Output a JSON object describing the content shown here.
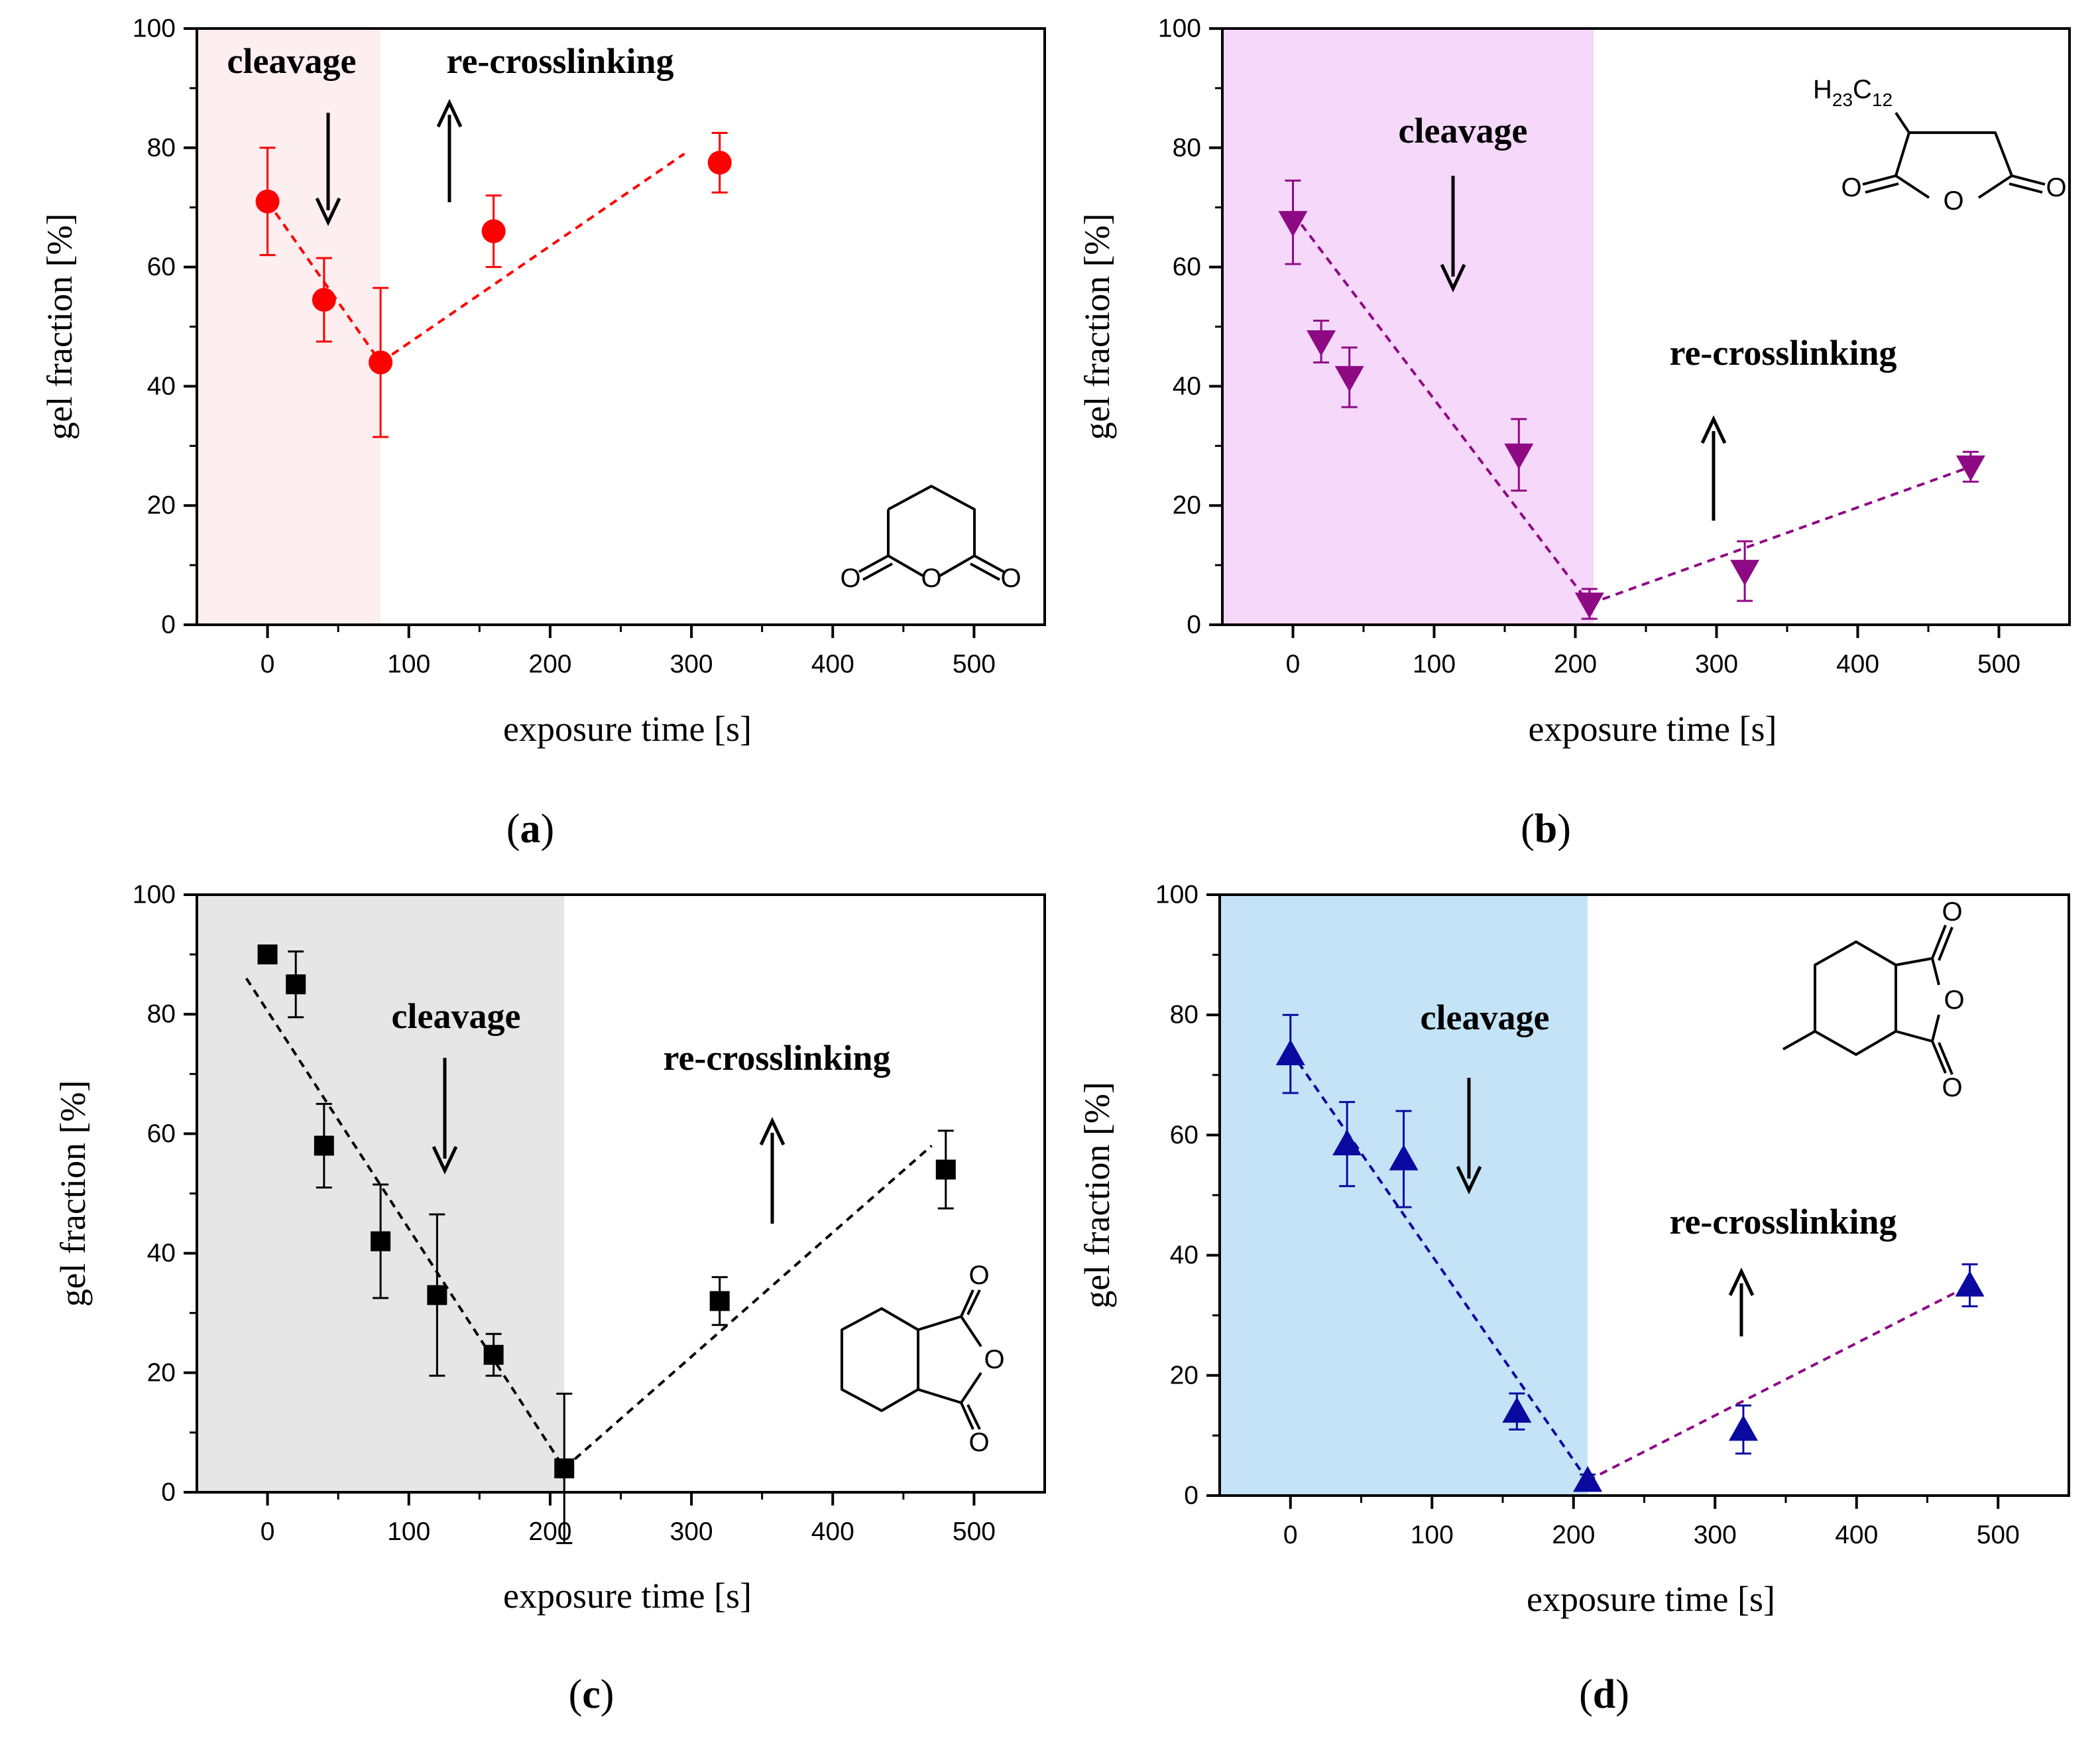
{
  "colors": {
    "a_marker": "#ff0000",
    "a_shade": "#fdeef0",
    "b_marker": "#8e0a85",
    "b_shade": "#f5d8fa",
    "c_marker": "#000000",
    "c_shade": "#e6e6e6",
    "d_marker": "#0a0aa0",
    "d_shade": "#c4e3f7",
    "d_recross_line": "#8e0a85"
  },
  "chart_data": [
    {
      "panel": "a",
      "type": "scatter",
      "marker": "circle",
      "xlabel": "exposure time [s]",
      "ylabel": "gel fraction [%]",
      "xlim": [
        -50,
        550
      ],
      "ylim": [
        0,
        100
      ],
      "xticks": [
        0,
        100,
        200,
        300,
        400,
        500
      ],
      "yticks": [
        0,
        20,
        40,
        60,
        80,
        100
      ],
      "shaded_region_x": [
        -50,
        80
      ],
      "points": [
        {
          "x": 0,
          "y": 71,
          "err": 9
        },
        {
          "x": 40,
          "y": 54.5,
          "err": 7
        },
        {
          "x": 80,
          "y": 44,
          "err": 12.5
        },
        {
          "x": 160,
          "y": 66,
          "err": 6
        },
        {
          "x": 320,
          "y": 77.5,
          "err": 5
        }
      ],
      "trend_lines": [
        {
          "x": [
            0,
            80
          ],
          "y": [
            71,
            44
          ]
        },
        {
          "x": [
            80,
            295
          ],
          "y": [
            44,
            79
          ]
        }
      ],
      "annotations": {
        "cleavage": "cleavage",
        "recrosslinking": "re-crosslinking"
      },
      "structure": "glutaric anhydride",
      "atom_labels": [
        "O",
        "O",
        "O"
      ],
      "label_text": "a"
    },
    {
      "panel": "b",
      "type": "scatter",
      "marker": "triangle-down",
      "xlabel": "exposure time [s]",
      "ylabel": "gel fraction [%]",
      "xlim": [
        -50,
        550
      ],
      "ylim": [
        0,
        100
      ],
      "xticks": [
        0,
        100,
        200,
        300,
        400,
        500
      ],
      "yticks": [
        0,
        20,
        40,
        60,
        80,
        100
      ],
      "shaded_region_x": [
        -50,
        213
      ],
      "points": [
        {
          "x": 0,
          "y": 67.5,
          "err": 7
        },
        {
          "x": 20,
          "y": 47.5,
          "err": 3.5
        },
        {
          "x": 40,
          "y": 41.5,
          "err": 5
        },
        {
          "x": 160,
          "y": 28.5,
          "err": 6
        },
        {
          "x": 210,
          "y": 3.5,
          "err": 2.5
        },
        {
          "x": 320,
          "y": 9,
          "err": 5
        },
        {
          "x": 480,
          "y": 26.5,
          "err": 2.5
        }
      ],
      "trend_lines": [
        {
          "x": [
            0,
            210
          ],
          "y": [
            69,
            3.5
          ]
        },
        {
          "x": [
            210,
            480
          ],
          "y": [
            3.5,
            26.5
          ]
        }
      ],
      "annotations": {
        "cleavage": "cleavage",
        "recrosslinking": "re-crosslinking"
      },
      "structure": "dodecylsuccinic anhydride",
      "atom_labels": [
        "O",
        "O",
        "O"
      ],
      "substituent": {
        "h": "H",
        "h_sub": "23",
        "c": "C",
        "c_sub": "12"
      },
      "label_text": "b"
    },
    {
      "panel": "c",
      "type": "scatter",
      "marker": "square",
      "xlabel": "exposure time [s]",
      "ylabel": "gel fraction [%]",
      "xlim": [
        -50,
        550
      ],
      "ylim": [
        0,
        100
      ],
      "xticks": [
        0,
        100,
        200,
        300,
        400,
        500
      ],
      "yticks": [
        0,
        20,
        40,
        60,
        80,
        100
      ],
      "shaded_region_x": [
        -50,
        210
      ],
      "points": [
        {
          "x": 0,
          "y": 90,
          "err": 0
        },
        {
          "x": 20,
          "y": 85,
          "err": 5.5
        },
        {
          "x": 40,
          "y": 58,
          "err": 7
        },
        {
          "x": 80,
          "y": 42,
          "err": 9.5
        },
        {
          "x": 120,
          "y": 33,
          "err": 13.5
        },
        {
          "x": 160,
          "y": 23,
          "err": 3.5
        },
        {
          "x": 210,
          "y": 4,
          "err": 12.5
        },
        {
          "x": 320,
          "y": 32,
          "err": 4
        },
        {
          "x": 480,
          "y": 54,
          "err": 6.5
        }
      ],
      "trend_lines": [
        {
          "x": [
            -15,
            210
          ],
          "y": [
            86,
            4
          ]
        },
        {
          "x": [
            210,
            470
          ],
          "y": [
            4,
            58
          ]
        }
      ],
      "annotations": {
        "cleavage": "cleavage",
        "recrosslinking": "re-crosslinking"
      },
      "structure": "hexahydrophthalic anhydride",
      "atom_labels": [
        "O",
        "O",
        "O"
      ],
      "label_text": "c"
    },
    {
      "panel": "d",
      "type": "scatter",
      "marker": "triangle-up",
      "xlabel": "exposure time [s]",
      "ylabel": "gel fraction [%]",
      "xlim": [
        -50,
        550
      ],
      "ylim": [
        0,
        100
      ],
      "xticks": [
        0,
        100,
        200,
        300,
        400,
        500
      ],
      "yticks": [
        0,
        20,
        40,
        60,
        80,
        100
      ],
      "shaded_region_x": [
        -50,
        210
      ],
      "points": [
        {
          "x": 0,
          "y": 73.5,
          "err": 6.5
        },
        {
          "x": 40,
          "y": 58.5,
          "err": 7
        },
        {
          "x": 80,
          "y": 56,
          "err": 8
        },
        {
          "x": 160,
          "y": 14,
          "err": 3
        },
        {
          "x": 210,
          "y": 2.5,
          "err": 1
        },
        {
          "x": 320,
          "y": 11,
          "err": 4
        },
        {
          "x": 480,
          "y": 35,
          "err": 3.5
        }
      ],
      "trend_lines": [
        {
          "x": [
            0,
            210
          ],
          "y": [
            74,
            2.5
          ]
        },
        {
          "x": [
            210,
            480
          ],
          "y": [
            2.5,
            35
          ]
        }
      ],
      "annotations": {
        "cleavage": "cleavage",
        "recrosslinking": "re-crosslinking"
      },
      "structure": "methylhexahydrophthalic anhydride",
      "atom_labels": [
        "O",
        "O",
        "O"
      ],
      "label_text": "d"
    }
  ]
}
